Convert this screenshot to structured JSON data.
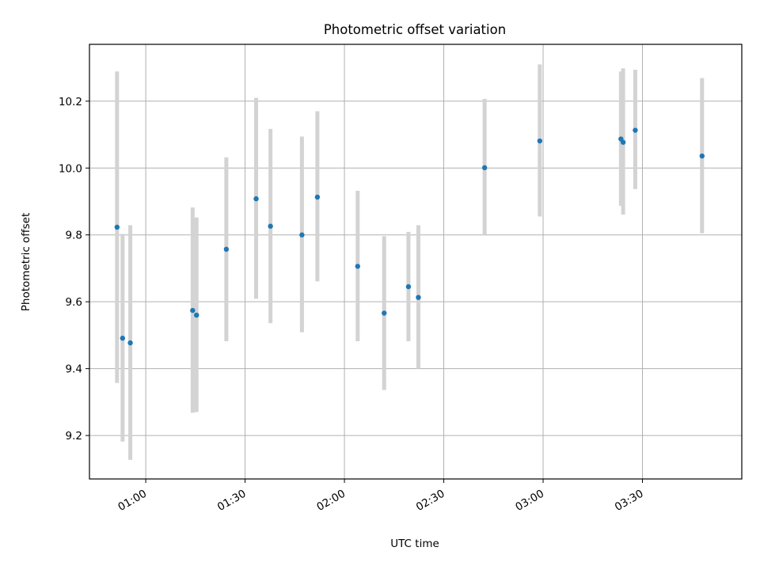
{
  "chart_data": {
    "type": "scatter",
    "title": "Photometric offset variation",
    "xlabel": "UTC time",
    "ylabel": "Photometric offset",
    "x_axis": {
      "type": "time",
      "range": [
        "00:43",
        "04:00"
      ],
      "ticks": [
        "01:00",
        "01:30",
        "02:00",
        "02:30",
        "03:00",
        "03:30"
      ]
    },
    "y_axis": {
      "range": [
        9.07,
        10.37
      ],
      "ticks": [
        "9.2",
        "9.4",
        "9.6",
        "9.8",
        "10.0",
        "10.2"
      ]
    },
    "grid": true,
    "legend": "none",
    "colors": {
      "point": "#1f77b4",
      "errorbar": "#d3d3d3",
      "grid": "#b0b0b0"
    },
    "series": [
      {
        "points": [
          {
            "x": "00:51:20",
            "y": 9.823,
            "yerr_low": 9.357,
            "yerr_high": 10.289
          },
          {
            "x": "00:53:00",
            "y": 9.491,
            "yerr_low": 9.182,
            "yerr_high": 9.803
          },
          {
            "x": "00:55:20",
            "y": 9.477,
            "yerr_low": 9.127,
            "yerr_high": 9.829
          },
          {
            "x": "01:14:10",
            "y": 9.574,
            "yerr_low": 9.268,
            "yerr_high": 9.882
          },
          {
            "x": "01:15:20",
            "y": 9.56,
            "yerr_low": 9.27,
            "yerr_high": 9.852
          },
          {
            "x": "01:24:20",
            "y": 9.757,
            "yerr_low": 9.482,
            "yerr_high": 10.032
          },
          {
            "x": "01:33:20",
            "y": 9.908,
            "yerr_low": 9.609,
            "yerr_high": 10.21
          },
          {
            "x": "01:37:40",
            "y": 9.826,
            "yerr_low": 9.536,
            "yerr_high": 10.117
          },
          {
            "x": "01:47:10",
            "y": 9.8,
            "yerr_low": 9.509,
            "yerr_high": 10.094
          },
          {
            "x": "01:51:50",
            "y": 9.913,
            "yerr_low": 9.661,
            "yerr_high": 10.17
          },
          {
            "x": "02:04:00",
            "y": 9.706,
            "yerr_low": 9.482,
            "yerr_high": 9.932
          },
          {
            "x": "02:12:00",
            "y": 9.566,
            "yerr_low": 9.336,
            "yerr_high": 9.796
          },
          {
            "x": "02:19:20",
            "y": 9.645,
            "yerr_low": 9.482,
            "yerr_high": 9.809
          },
          {
            "x": "02:22:20",
            "y": 9.613,
            "yerr_low": 9.4,
            "yerr_high": 9.829
          },
          {
            "x": "02:42:20",
            "y": 10.001,
            "yerr_low": 9.8,
            "yerr_high": 10.207
          },
          {
            "x": "02:59:00",
            "y": 10.081,
            "yerr_low": 9.855,
            "yerr_high": 10.31
          },
          {
            "x": "03:23:30",
            "y": 10.087,
            "yerr_low": 9.887,
            "yerr_high": 10.289
          },
          {
            "x": "03:24:10",
            "y": 10.077,
            "yerr_low": 9.861,
            "yerr_high": 10.298
          },
          {
            "x": "03:27:50",
            "y": 10.113,
            "yerr_low": 9.937,
            "yerr_high": 10.294
          },
          {
            "x": "03:48:00",
            "y": 10.036,
            "yerr_low": 9.805,
            "yerr_high": 10.269
          }
        ]
      }
    ]
  }
}
